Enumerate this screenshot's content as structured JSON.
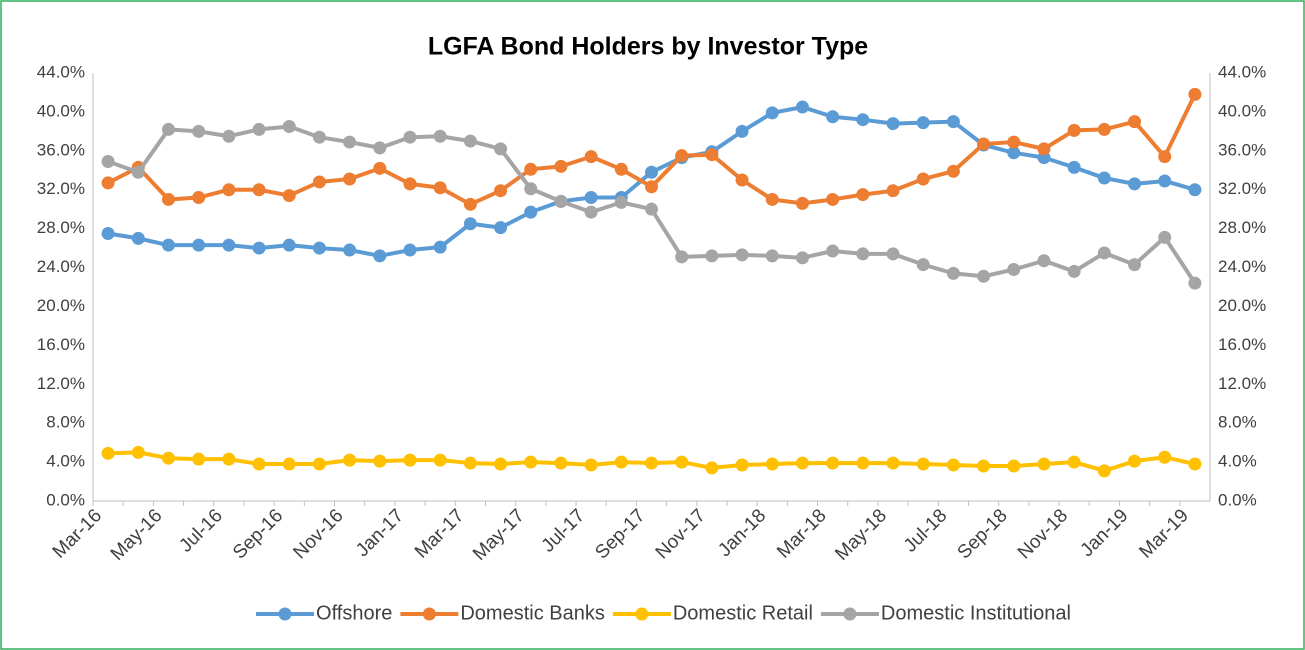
{
  "chart_data": {
    "type": "line",
    "title": "LGFA Bond Holders by Investor Type",
    "categories": [
      "Mar-16",
      null,
      "May-16",
      null,
      "Jul-16",
      null,
      "Sep-16",
      null,
      "Nov-16",
      null,
      "Jan-17",
      null,
      "Mar-17",
      null,
      "May-17",
      null,
      "Jul-17",
      null,
      "Sep-17",
      null,
      "Nov-17",
      null,
      "Jan-18",
      null,
      "Mar-18",
      null,
      "May-18",
      null,
      "Jul-18",
      null,
      "Sep-18",
      null,
      "Nov-18",
      null,
      "Jan-19",
      null,
      "Mar-19"
    ],
    "series": [
      {
        "name": "Offshore",
        "color": "#5b9bd5",
        "values": [
          27.5,
          27.0,
          26.3,
          26.3,
          26.3,
          26.0,
          26.3,
          26.0,
          25.8,
          25.2,
          25.8,
          26.1,
          28.5,
          28.1,
          29.7,
          30.8,
          31.2,
          31.2,
          33.8,
          35.3,
          35.9,
          38.0,
          39.9,
          40.5,
          39.5,
          39.2,
          38.8,
          38.9,
          39.0,
          36.6,
          35.8,
          35.3,
          34.3,
          33.2,
          32.6,
          32.9,
          32.0
        ]
      },
      {
        "name": "Domestic Banks",
        "color": "#ed7d31",
        "values": [
          32.7,
          34.3,
          31.0,
          31.2,
          32.0,
          32.0,
          31.4,
          32.8,
          33.1,
          34.2,
          32.6,
          32.2,
          30.5,
          31.9,
          34.1,
          34.4,
          35.4,
          34.1,
          32.3,
          35.5,
          35.6,
          33.0,
          31.0,
          30.6,
          31.0,
          31.5,
          31.9,
          33.1,
          33.9,
          36.7,
          36.9,
          36.2,
          38.1,
          38.2,
          39.0,
          35.4,
          41.8
        ]
      },
      {
        "name": "Domestic Retail",
        "color": "#ffc000",
        "values": [
          4.9,
          5.0,
          4.4,
          4.3,
          4.3,
          3.8,
          3.8,
          3.8,
          4.2,
          4.1,
          4.2,
          4.2,
          3.9,
          3.8,
          4.0,
          3.9,
          3.7,
          4.0,
          3.9,
          4.0,
          3.4,
          3.7,
          3.8,
          3.9,
          3.9,
          3.9,
          3.9,
          3.8,
          3.7,
          3.6,
          3.6,
          3.8,
          4.0,
          3.1,
          4.1,
          4.5,
          3.8
        ]
      },
      {
        "name": "Domestic Institutional",
        "color": "#a5a5a5",
        "values": [
          34.9,
          33.8,
          38.2,
          38.0,
          37.5,
          38.2,
          38.5,
          37.4,
          36.9,
          36.3,
          37.4,
          37.5,
          37.0,
          36.2,
          32.1,
          30.8,
          29.7,
          30.7,
          30.0,
          25.1,
          25.2,
          25.3,
          25.2,
          25.0,
          25.7,
          25.4,
          25.4,
          24.3,
          23.4,
          23.1,
          23.8,
          24.7,
          23.6,
          25.5,
          24.3,
          27.1,
          22.4
        ]
      }
    ],
    "ylim": [
      0,
      44
    ],
    "yticks": [
      {
        "value": 0,
        "label": "0.0%"
      },
      {
        "value": 4,
        "label": "4.0%"
      },
      {
        "value": 8,
        "label": "8.0%"
      },
      {
        "value": 12,
        "label": "12.0%"
      },
      {
        "value": 16,
        "label": "16.0%"
      },
      {
        "value": 20,
        "label": "20.0%"
      },
      {
        "value": 24,
        "label": "24.0%"
      },
      {
        "value": 28,
        "label": "28.0%"
      },
      {
        "value": 32,
        "label": "32.0%"
      },
      {
        "value": 36,
        "label": "36.0%"
      },
      {
        "value": 40,
        "label": "40.0%"
      },
      {
        "value": 44,
        "label": "44.0%"
      }
    ],
    "y2lim": [
      0,
      44
    ],
    "y2ticks": [
      {
        "value": 0,
        "label": "0.0%"
      },
      {
        "value": 4,
        "label": "4.0%"
      },
      {
        "value": 8,
        "label": "8.0%"
      },
      {
        "value": 12,
        "label": "12.0%"
      },
      {
        "value": 16,
        "label": "16.0%"
      },
      {
        "value": 20,
        "label": "20.0%"
      },
      {
        "value": 24,
        "label": "24.0%"
      },
      {
        "value": 28,
        "label": "28.0%"
      },
      {
        "value": 32,
        "label": "32.0%"
      },
      {
        "value": 36,
        "label": "36.0%"
      },
      {
        "value": 40,
        "label": "40.0%"
      },
      {
        "value": 44,
        "label": "44.0%"
      }
    ],
    "grid": false,
    "legend": "bottom"
  }
}
